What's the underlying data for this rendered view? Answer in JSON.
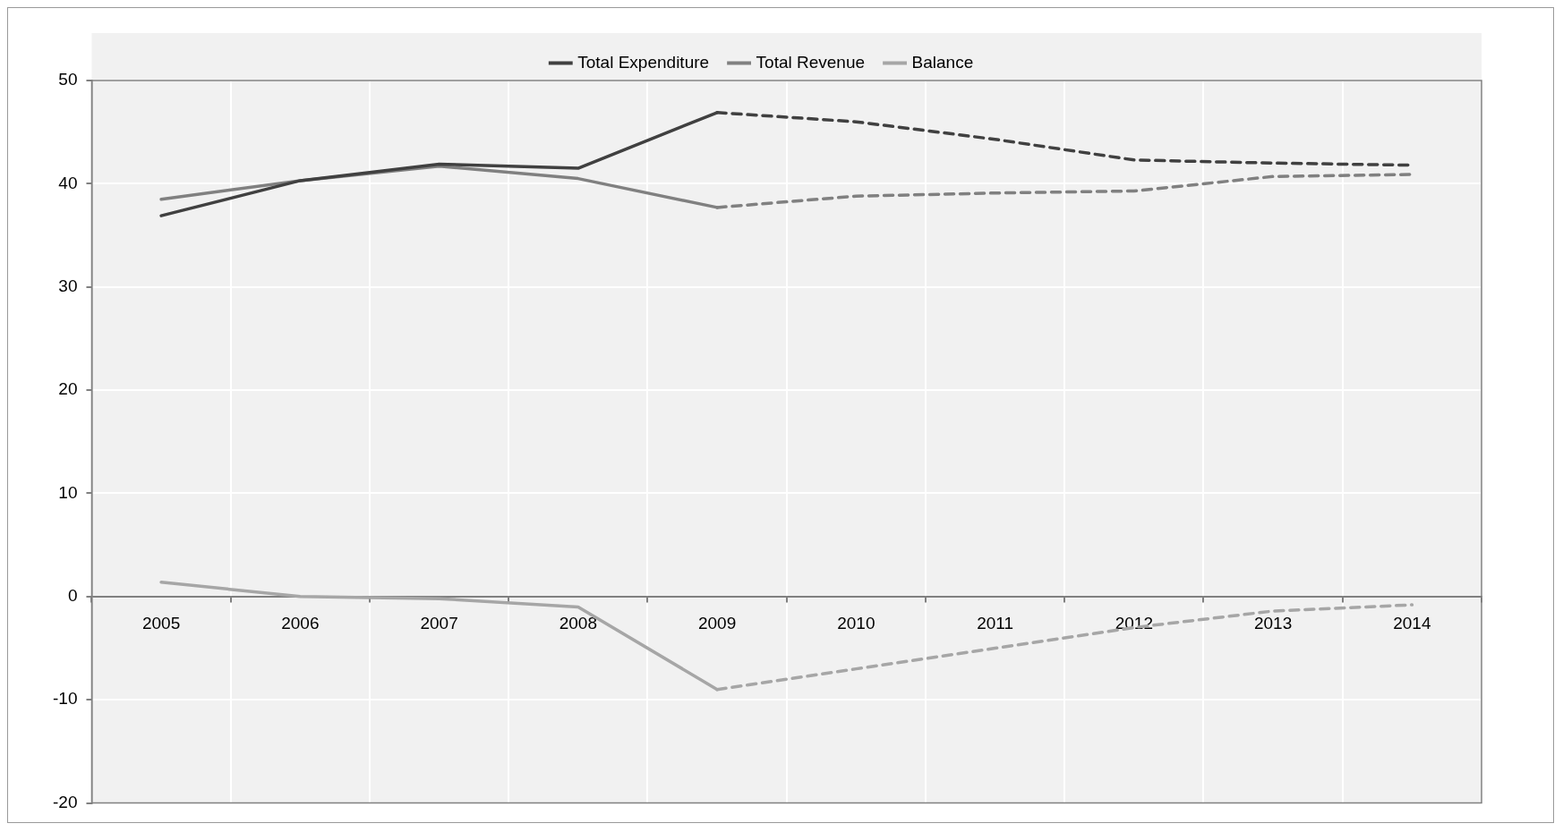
{
  "chart_data": {
    "type": "line",
    "categories": [
      "2005",
      "2006",
      "2007",
      "2008",
      "2009",
      "2010",
      "2011",
      "2012",
      "2013",
      "2014"
    ],
    "series": [
      {
        "name": "Total Expenditure",
        "color": "#404040",
        "line_style": "solid",
        "values": [
          36.9,
          40.3,
          41.9,
          41.5,
          46.9,
          null,
          null,
          null,
          null,
          null
        ]
      },
      {
        "name": "Total Revenue",
        "color": "#808080",
        "line_style": "solid",
        "values": [
          38.5,
          40.3,
          41.7,
          40.5,
          37.7,
          null,
          null,
          null,
          null,
          null
        ]
      },
      {
        "name": "Balance",
        "color": "#a6a6a6",
        "line_style": "solid",
        "values": [
          1.4,
          0,
          -0.2,
          -1.0,
          -9.0,
          null,
          null,
          null,
          null,
          null
        ]
      },
      {
        "color": "#404040",
        "line_style": "dashed",
        "values": [
          null,
          null,
          null,
          null,
          46.9,
          46.0,
          44.3,
          42.3,
          42.0,
          41.8
        ]
      },
      {
        "color": "#808080",
        "line_style": "dashed",
        "values": [
          null,
          null,
          null,
          null,
          37.7,
          38.8,
          39.1,
          39.3,
          40.7,
          40.9
        ]
      },
      {
        "color": "#a6a6a6",
        "line_style": "dashed",
        "values": [
          null,
          null,
          null,
          null,
          -9.0,
          -7.0,
          -5.0,
          -3.0,
          -1.4,
          -0.8
        ]
      }
    ],
    "ylim": [
      -20,
      50
    ],
    "yticks": [
      -20,
      -10,
      0,
      10,
      20,
      30,
      40,
      50
    ],
    "grid": true,
    "legend": "top",
    "marker": "none"
  }
}
